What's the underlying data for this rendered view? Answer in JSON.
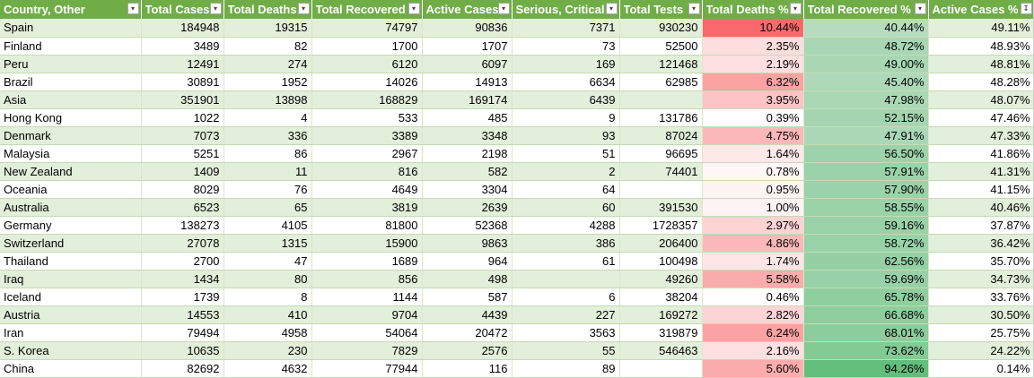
{
  "headers": [
    {
      "label": "Country, Other",
      "filter": "dropdown"
    },
    {
      "label": "Total Cases",
      "filter": "dropdown"
    },
    {
      "label": "Total Deaths",
      "filter": "dropdown"
    },
    {
      "label": "Total Recovered",
      "filter": "dropdown"
    },
    {
      "label": "Active Cases",
      "filter": "dropdown"
    },
    {
      "label": "Serious, Critical",
      "filter": "dropdown"
    },
    {
      "label": "Total Tests",
      "filter": "dropdown"
    },
    {
      "label": "Total Deaths %",
      "filter": "dropdown"
    },
    {
      "label": "Total Recovered %",
      "filter": "dropdown"
    },
    {
      "label": "Active Cases %",
      "filter": "sorted-descending"
    }
  ],
  "rows": [
    [
      "Spain",
      "184948",
      "19315",
      "74797",
      "90836",
      "7371",
      "930230",
      "10.44%",
      "40.44%",
      "49.11%"
    ],
    [
      "Finland",
      "3489",
      "82",
      "1700",
      "1707",
      "73",
      "52500",
      "2.35%",
      "48.72%",
      "48.93%"
    ],
    [
      "Peru",
      "12491",
      "274",
      "6120",
      "6097",
      "169",
      "121468",
      "2.19%",
      "49.00%",
      "48.81%"
    ],
    [
      "Brazil",
      "30891",
      "1952",
      "14026",
      "14913",
      "6634",
      "62985",
      "6.32%",
      "45.40%",
      "48.28%"
    ],
    [
      "Asia",
      "351901",
      "13898",
      "168829",
      "169174",
      "6439",
      "",
      "3.95%",
      "47.98%",
      "48.07%"
    ],
    [
      "Hong Kong",
      "1022",
      "4",
      "533",
      "485",
      "9",
      "131786",
      "0.39%",
      "52.15%",
      "47.46%"
    ],
    [
      "Denmark",
      "7073",
      "336",
      "3389",
      "3348",
      "93",
      "87024",
      "4.75%",
      "47.91%",
      "47.33%"
    ],
    [
      "Malaysia",
      "5251",
      "86",
      "2967",
      "2198",
      "51",
      "96695",
      "1.64%",
      "56.50%",
      "41.86%"
    ],
    [
      "New Zealand",
      "1409",
      "11",
      "816",
      "582",
      "2",
      "74401",
      "0.78%",
      "57.91%",
      "41.31%"
    ],
    [
      "Oceania",
      "8029",
      "76",
      "4649",
      "3304",
      "64",
      "",
      "0.95%",
      "57.90%",
      "41.15%"
    ],
    [
      "Australia",
      "6523",
      "65",
      "3819",
      "2639",
      "60",
      "391530",
      "1.00%",
      "58.55%",
      "40.46%"
    ],
    [
      "Germany",
      "138273",
      "4105",
      "81800",
      "52368",
      "4288",
      "1728357",
      "2.97%",
      "59.16%",
      "37.87%"
    ],
    [
      "Switzerland",
      "27078",
      "1315",
      "15900",
      "9863",
      "386",
      "206400",
      "4.86%",
      "58.72%",
      "36.42%"
    ],
    [
      "Thailand",
      "2700",
      "47",
      "1689",
      "964",
      "61",
      "100498",
      "1.74%",
      "62.56%",
      "35.70%"
    ],
    [
      "Iraq",
      "1434",
      "80",
      "856",
      "498",
      "",
      "49260",
      "5.58%",
      "59.69%",
      "34.73%"
    ],
    [
      "Iceland",
      "1739",
      "8",
      "1144",
      "587",
      "6",
      "38204",
      "0.46%",
      "65.78%",
      "33.76%"
    ],
    [
      "Austria",
      "14553",
      "410",
      "9704",
      "4439",
      "227",
      "169272",
      "2.82%",
      "66.68%",
      "30.50%"
    ],
    [
      "Iran",
      "79494",
      "4958",
      "54064",
      "20472",
      "3563",
      "319879",
      "6.24%",
      "68.01%",
      "25.75%"
    ],
    [
      "S. Korea",
      "10635",
      "230",
      "7829",
      "2576",
      "55",
      "546463",
      "2.16%",
      "73.62%",
      "24.22%"
    ],
    [
      "China",
      "82692",
      "4632",
      "77944",
      "116",
      "89",
      "",
      "5.60%",
      "94.26%",
      "0.14%"
    ]
  ],
  "colors": {
    "header_bg": "#70ad47",
    "header_text": "#ffffff",
    "band_row": "#e2efda",
    "deaths_scale_max": "#f8696b",
    "recovered_scale_low": "#b6dcbf",
    "recovered_scale_high": "#63be7b"
  }
}
